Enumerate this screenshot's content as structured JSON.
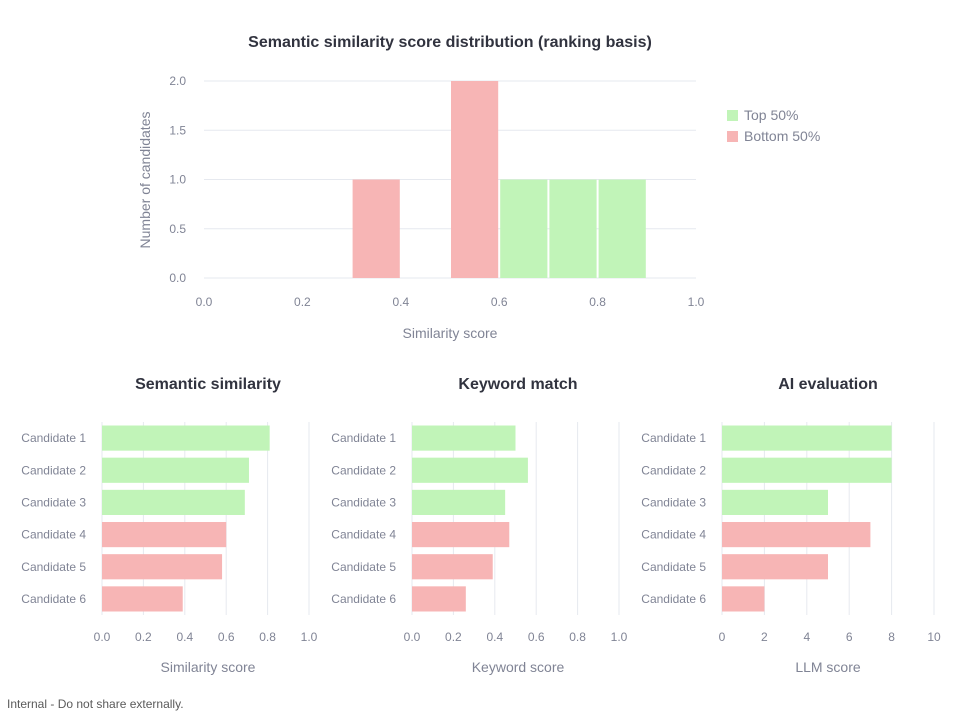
{
  "colors": {
    "top": "#c1f4b8",
    "bottom": "#f7b5b5",
    "grid": "#e6e9ef",
    "tick": "#808495",
    "title": "#31333f"
  },
  "footer_note": "Internal - Do not share externally.",
  "chart_data": [
    {
      "id": "histogram",
      "type": "bar",
      "title": "Semantic similarity score distribution (ranking basis)",
      "xlabel": "Similarity score",
      "ylabel": "Number of candidates",
      "xlim": [
        0,
        1.0
      ],
      "ylim": [
        0,
        2.0
      ],
      "xticks": [
        "0.0",
        "0.2",
        "0.4",
        "0.6",
        "0.8",
        "1.0"
      ],
      "yticks": [
        "0.0",
        "0.5",
        "1.0",
        "1.5",
        "2.0"
      ],
      "legend": {
        "position": "right",
        "entries": [
          {
            "label": "Top 50%",
            "group": "top"
          },
          {
            "label": "Bottom 50%",
            "group": "bottom"
          }
        ]
      },
      "bins": [
        {
          "x0": 0.3,
          "x1": 0.4,
          "count": 1,
          "group": "bottom"
        },
        {
          "x0": 0.5,
          "x1": 0.6,
          "count": 2,
          "group": "bottom"
        },
        {
          "x0": 0.6,
          "x1": 0.7,
          "count": 1,
          "group": "top"
        },
        {
          "x0": 0.7,
          "x1": 0.8,
          "count": 1,
          "group": "top"
        },
        {
          "x0": 0.8,
          "x1": 0.9,
          "count": 1,
          "group": "top"
        }
      ]
    },
    {
      "id": "semantic",
      "type": "bar",
      "orientation": "horizontal",
      "title": "Semantic similarity",
      "xlabel": "Similarity score",
      "xlim": [
        0,
        1.0
      ],
      "xticks": [
        "0.0",
        "0.2",
        "0.4",
        "0.6",
        "0.8",
        "1.0"
      ],
      "categories": [
        "Candidate 1",
        "Candidate 2",
        "Candidate 3",
        "Candidate 4",
        "Candidate 5",
        "Candidate 6"
      ],
      "values": [
        0.81,
        0.71,
        0.69,
        0.6,
        0.58,
        0.39
      ],
      "groups": [
        "top",
        "top",
        "top",
        "bottom",
        "bottom",
        "bottom"
      ]
    },
    {
      "id": "keyword",
      "type": "bar",
      "orientation": "horizontal",
      "title": "Keyword match",
      "xlabel": "Keyword score",
      "xlim": [
        0,
        1.0
      ],
      "xticks": [
        "0.0",
        "0.2",
        "0.4",
        "0.6",
        "0.8",
        "1.0"
      ],
      "categories": [
        "Candidate 1",
        "Candidate 2",
        "Candidate 3",
        "Candidate 4",
        "Candidate 5",
        "Candidate 6"
      ],
      "values": [
        0.5,
        0.56,
        0.45,
        0.47,
        0.39,
        0.26
      ],
      "groups": [
        "top",
        "top",
        "top",
        "bottom",
        "bottom",
        "bottom"
      ]
    },
    {
      "id": "ai",
      "type": "bar",
      "orientation": "horizontal",
      "title": "AI evaluation",
      "xlabel": "LLM score",
      "xlim": [
        0,
        10
      ],
      "xticks": [
        "0",
        "2",
        "4",
        "6",
        "8",
        "10"
      ],
      "categories": [
        "Candidate 1",
        "Candidate 2",
        "Candidate 3",
        "Candidate 4",
        "Candidate 5",
        "Candidate 6"
      ],
      "values": [
        8,
        8,
        5,
        7,
        5,
        2
      ],
      "groups": [
        "top",
        "top",
        "top",
        "bottom",
        "bottom",
        "bottom"
      ]
    }
  ]
}
